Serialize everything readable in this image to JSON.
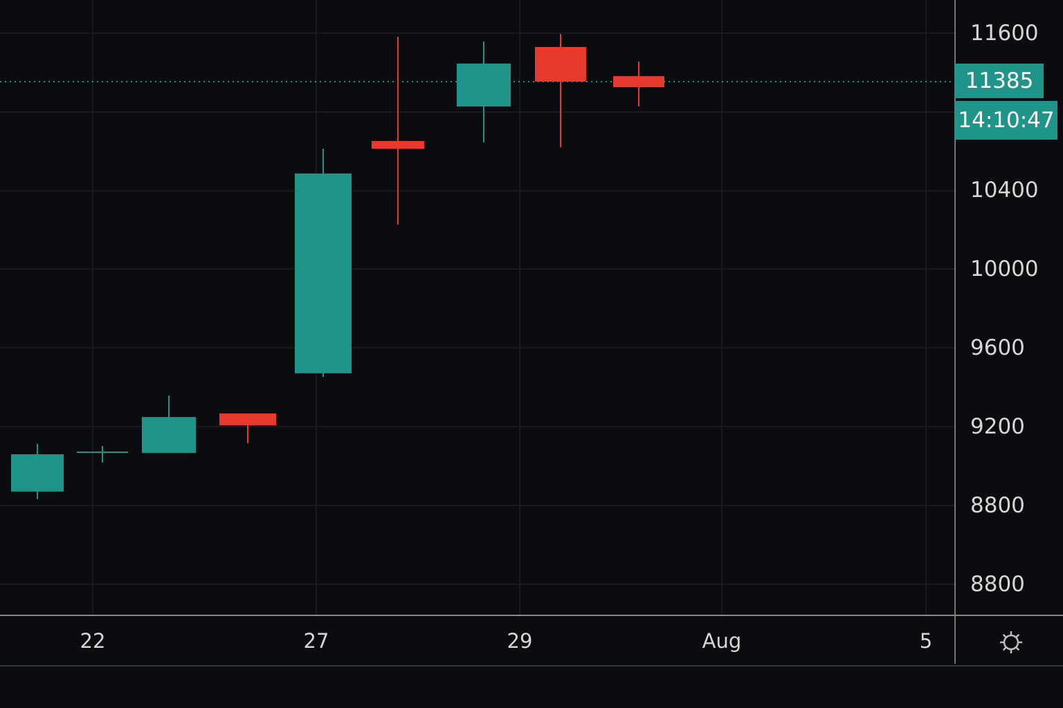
{
  "chart_data": {
    "type": "candlestick",
    "title": "",
    "xlabel": "",
    "ylabel": "",
    "ylim": [
      8650,
      11750
    ],
    "grid": true,
    "y_tick_labels": [
      "11600",
      "10400",
      "10000",
      "9600",
      "9200",
      "8800",
      "8800"
    ],
    "x_tick_labels": [
      "22",
      "27",
      "29",
      "Aug",
      "5"
    ],
    "candles": [
      {
        "open": 9274,
        "high": 9516,
        "low": 9235,
        "close": 9463
      },
      {
        "open": 9477,
        "high": 9505,
        "low": 9421,
        "close": 9477
      },
      {
        "open": 9470,
        "high": 9761,
        "low": 9470,
        "close": 9652
      },
      {
        "open": 9670,
        "high": 9670,
        "low": 9519,
        "close": 9610
      },
      {
        "open": 9874,
        "high": 11014,
        "low": 9856,
        "close": 10888
      },
      {
        "open": 11053,
        "high": 11582,
        "low": 10628,
        "close": 11014
      },
      {
        "open": 11228,
        "high": 11558,
        "low": 11046,
        "close": 11446
      },
      {
        "open": 11530,
        "high": 11596,
        "low": 11021,
        "close": 11354
      },
      {
        "open": 11382,
        "high": 11456,
        "low": 11228,
        "close": 11326
      }
    ],
    "current_price": {
      "value": 11385,
      "label": "11385"
    },
    "countdown": "14:10:47"
  },
  "colors": {
    "up": "#1f9488",
    "down": "#e8392e",
    "background": "#0b0c0f",
    "grid": "#1c1e22",
    "text": "#d6d6d6"
  },
  "icons": {
    "settings": "gear-icon"
  }
}
